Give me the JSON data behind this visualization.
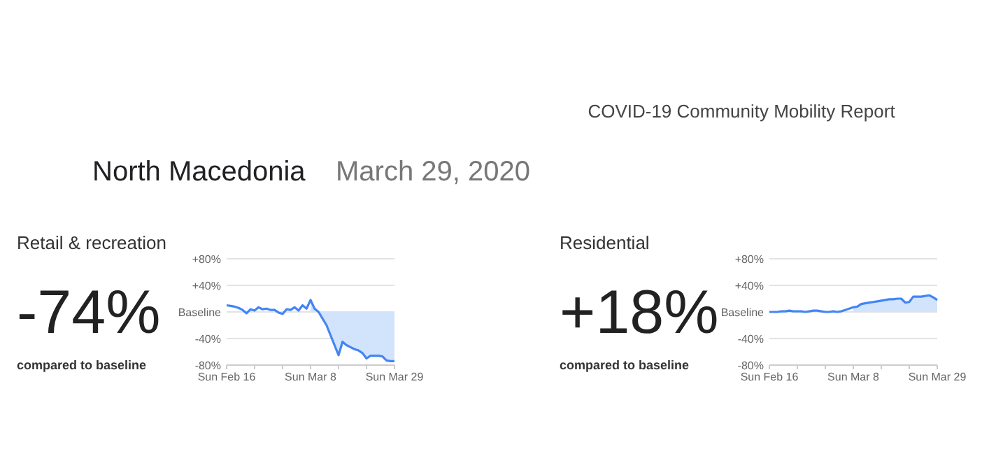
{
  "chart_data": [
    {
      "type": "other",
      "title": "North Macedonia",
      "subtitle": "March 29, 2020",
      "annotations": [
        "COVID-19 Community Mobility Report"
      ]
    },
    {
      "type": "line",
      "title": "Retail & recreation",
      "annotations": [
        "-74%",
        "compared to baseline"
      ],
      "grid": "y",
      "marker": "none",
      "line_style": "solid",
      "xlim": [
        "2020-02-16",
        "2020-03-29"
      ],
      "xticks": [
        {
          "value": "2020-02-16",
          "label": "Sun Feb 16"
        },
        {
          "value": "2020-02-23",
          "label": null
        },
        {
          "value": "2020-03-01",
          "label": null
        },
        {
          "value": "2020-03-08",
          "label": "Sun Mar 8"
        },
        {
          "value": "2020-03-15",
          "label": null
        },
        {
          "value": "2020-03-22",
          "label": null
        },
        {
          "value": "2020-03-29",
          "label": "Sun Mar 29"
        }
      ],
      "ylim": [
        -80,
        80
      ],
      "yticks": [
        {
          "value": 80,
          "label": "+80%"
        },
        {
          "value": 40,
          "label": "+40%"
        },
        {
          "value": 0,
          "label": "Baseline"
        },
        {
          "value": -40,
          "label": "-40%"
        },
        {
          "value": -80,
          "label": "-80%"
        }
      ],
      "series": [
        {
          "type": "area",
          "color": "#d2e3fc",
          "x": [
            "2020-03-08",
            "2020-03-09",
            "2020-03-10",
            "2020-03-11",
            "2020-03-12",
            "2020-03-13",
            "2020-03-14",
            "2020-03-15",
            "2020-03-16",
            "2020-03-17",
            "2020-03-18",
            "2020-03-19",
            "2020-03-20",
            "2020-03-21",
            "2020-03-22",
            "2020-03-23",
            "2020-03-24",
            "2020-03-25",
            "2020-03-26",
            "2020-03-27",
            "2020-03-28",
            "2020-03-29"
          ],
          "values": [
            18,
            5,
            0,
            -10,
            -20,
            -35,
            -50,
            -65,
            -45,
            -50,
            -53,
            -56,
            -58,
            -62,
            -70,
            -66,
            -66,
            -66,
            -67,
            -73,
            -74,
            -74
          ]
        },
        {
          "type": "line",
          "color": "#4285f4",
          "x": [
            "2020-02-16",
            "2020-02-17",
            "2020-02-18",
            "2020-02-19",
            "2020-02-20",
            "2020-02-21",
            "2020-02-22",
            "2020-02-23",
            "2020-02-24",
            "2020-02-25",
            "2020-02-26",
            "2020-02-27",
            "2020-02-28",
            "2020-02-29",
            "2020-03-01",
            "2020-03-02",
            "2020-03-03",
            "2020-03-04",
            "2020-03-05",
            "2020-03-06",
            "2020-03-07",
            "2020-03-08",
            "2020-03-09",
            "2020-03-10",
            "2020-03-11",
            "2020-03-12",
            "2020-03-13",
            "2020-03-14",
            "2020-03-15",
            "2020-03-16",
            "2020-03-17",
            "2020-03-18",
            "2020-03-19",
            "2020-03-20",
            "2020-03-21",
            "2020-03-22",
            "2020-03-23",
            "2020-03-24",
            "2020-03-25",
            "2020-03-26",
            "2020-03-27",
            "2020-03-28",
            "2020-03-29"
          ],
          "values": [
            10,
            9,
            8,
            6,
            3,
            -2,
            4,
            2,
            7,
            4,
            5,
            3,
            3,
            -1,
            -3,
            4,
            3,
            7,
            2,
            10,
            5,
            18,
            5,
            0,
            -10,
            -20,
            -35,
            -50,
            -65,
            -45,
            -50,
            -53,
            -56,
            -58,
            -62,
            -70,
            -66,
            -66,
            -66,
            -67,
            -73,
            -74,
            -74
          ]
        }
      ]
    },
    {
      "type": "line",
      "title": "Residential",
      "annotations": [
        "+18%",
        "compared to baseline"
      ],
      "grid": "y",
      "marker": "none",
      "line_style": "solid",
      "xlim": [
        "2020-02-16",
        "2020-03-29"
      ],
      "xticks": [
        {
          "value": "2020-02-16",
          "label": "Sun Feb 16"
        },
        {
          "value": "2020-02-23",
          "label": null
        },
        {
          "value": "2020-03-01",
          "label": null
        },
        {
          "value": "2020-03-08",
          "label": "Sun Mar 8"
        },
        {
          "value": "2020-03-15",
          "label": null
        },
        {
          "value": "2020-03-22",
          "label": null
        },
        {
          "value": "2020-03-29",
          "label": "Sun Mar 29"
        }
      ],
      "ylim": [
        -80,
        80
      ],
      "yticks": [
        {
          "value": 80,
          "label": "+80%"
        },
        {
          "value": 40,
          "label": "+40%"
        },
        {
          "value": 0,
          "label": "Baseline"
        },
        {
          "value": -40,
          "label": "-40%"
        },
        {
          "value": -80,
          "label": "-80%"
        }
      ],
      "series": [
        {
          "type": "area",
          "color": "#d2e3fc",
          "x": [
            "2020-03-08",
            "2020-03-09",
            "2020-03-10",
            "2020-03-11",
            "2020-03-12",
            "2020-03-13",
            "2020-03-14",
            "2020-03-15",
            "2020-03-16",
            "2020-03-17",
            "2020-03-18",
            "2020-03-19",
            "2020-03-20",
            "2020-03-21",
            "2020-03-22",
            "2020-03-23",
            "2020-03-24",
            "2020-03-25",
            "2020-03-26",
            "2020-03-27",
            "2020-03-28",
            "2020-03-29"
          ],
          "values": [
            7,
            8,
            12,
            13,
            14,
            15,
            16,
            17,
            18,
            19,
            19,
            20,
            20,
            14,
            15,
            23,
            23,
            23,
            24,
            25,
            22,
            18
          ]
        },
        {
          "type": "line",
          "color": "#4285f4",
          "x": [
            "2020-02-16",
            "2020-02-17",
            "2020-02-18",
            "2020-02-19",
            "2020-02-20",
            "2020-02-21",
            "2020-02-22",
            "2020-02-23",
            "2020-02-24",
            "2020-02-25",
            "2020-02-26",
            "2020-02-27",
            "2020-02-28",
            "2020-02-29",
            "2020-03-01",
            "2020-03-02",
            "2020-03-03",
            "2020-03-04",
            "2020-03-05",
            "2020-03-06",
            "2020-03-07",
            "2020-03-08",
            "2020-03-09",
            "2020-03-10",
            "2020-03-11",
            "2020-03-12",
            "2020-03-13",
            "2020-03-14",
            "2020-03-15",
            "2020-03-16",
            "2020-03-17",
            "2020-03-18",
            "2020-03-19",
            "2020-03-20",
            "2020-03-21",
            "2020-03-22",
            "2020-03-23",
            "2020-03-24",
            "2020-03-25",
            "2020-03-26",
            "2020-03-27",
            "2020-03-28",
            "2020-03-29"
          ],
          "values": [
            0,
            0,
            0,
            1,
            1,
            2,
            1,
            1,
            1,
            0,
            1,
            2,
            2,
            1,
            0,
            0,
            1,
            0,
            1,
            3,
            5,
            7,
            8,
            12,
            13,
            14,
            15,
            16,
            17,
            18,
            19,
            19,
            20,
            20,
            14,
            15,
            23,
            23,
            23,
            24,
            25,
            22,
            18
          ]
        }
      ]
    }
  ]
}
